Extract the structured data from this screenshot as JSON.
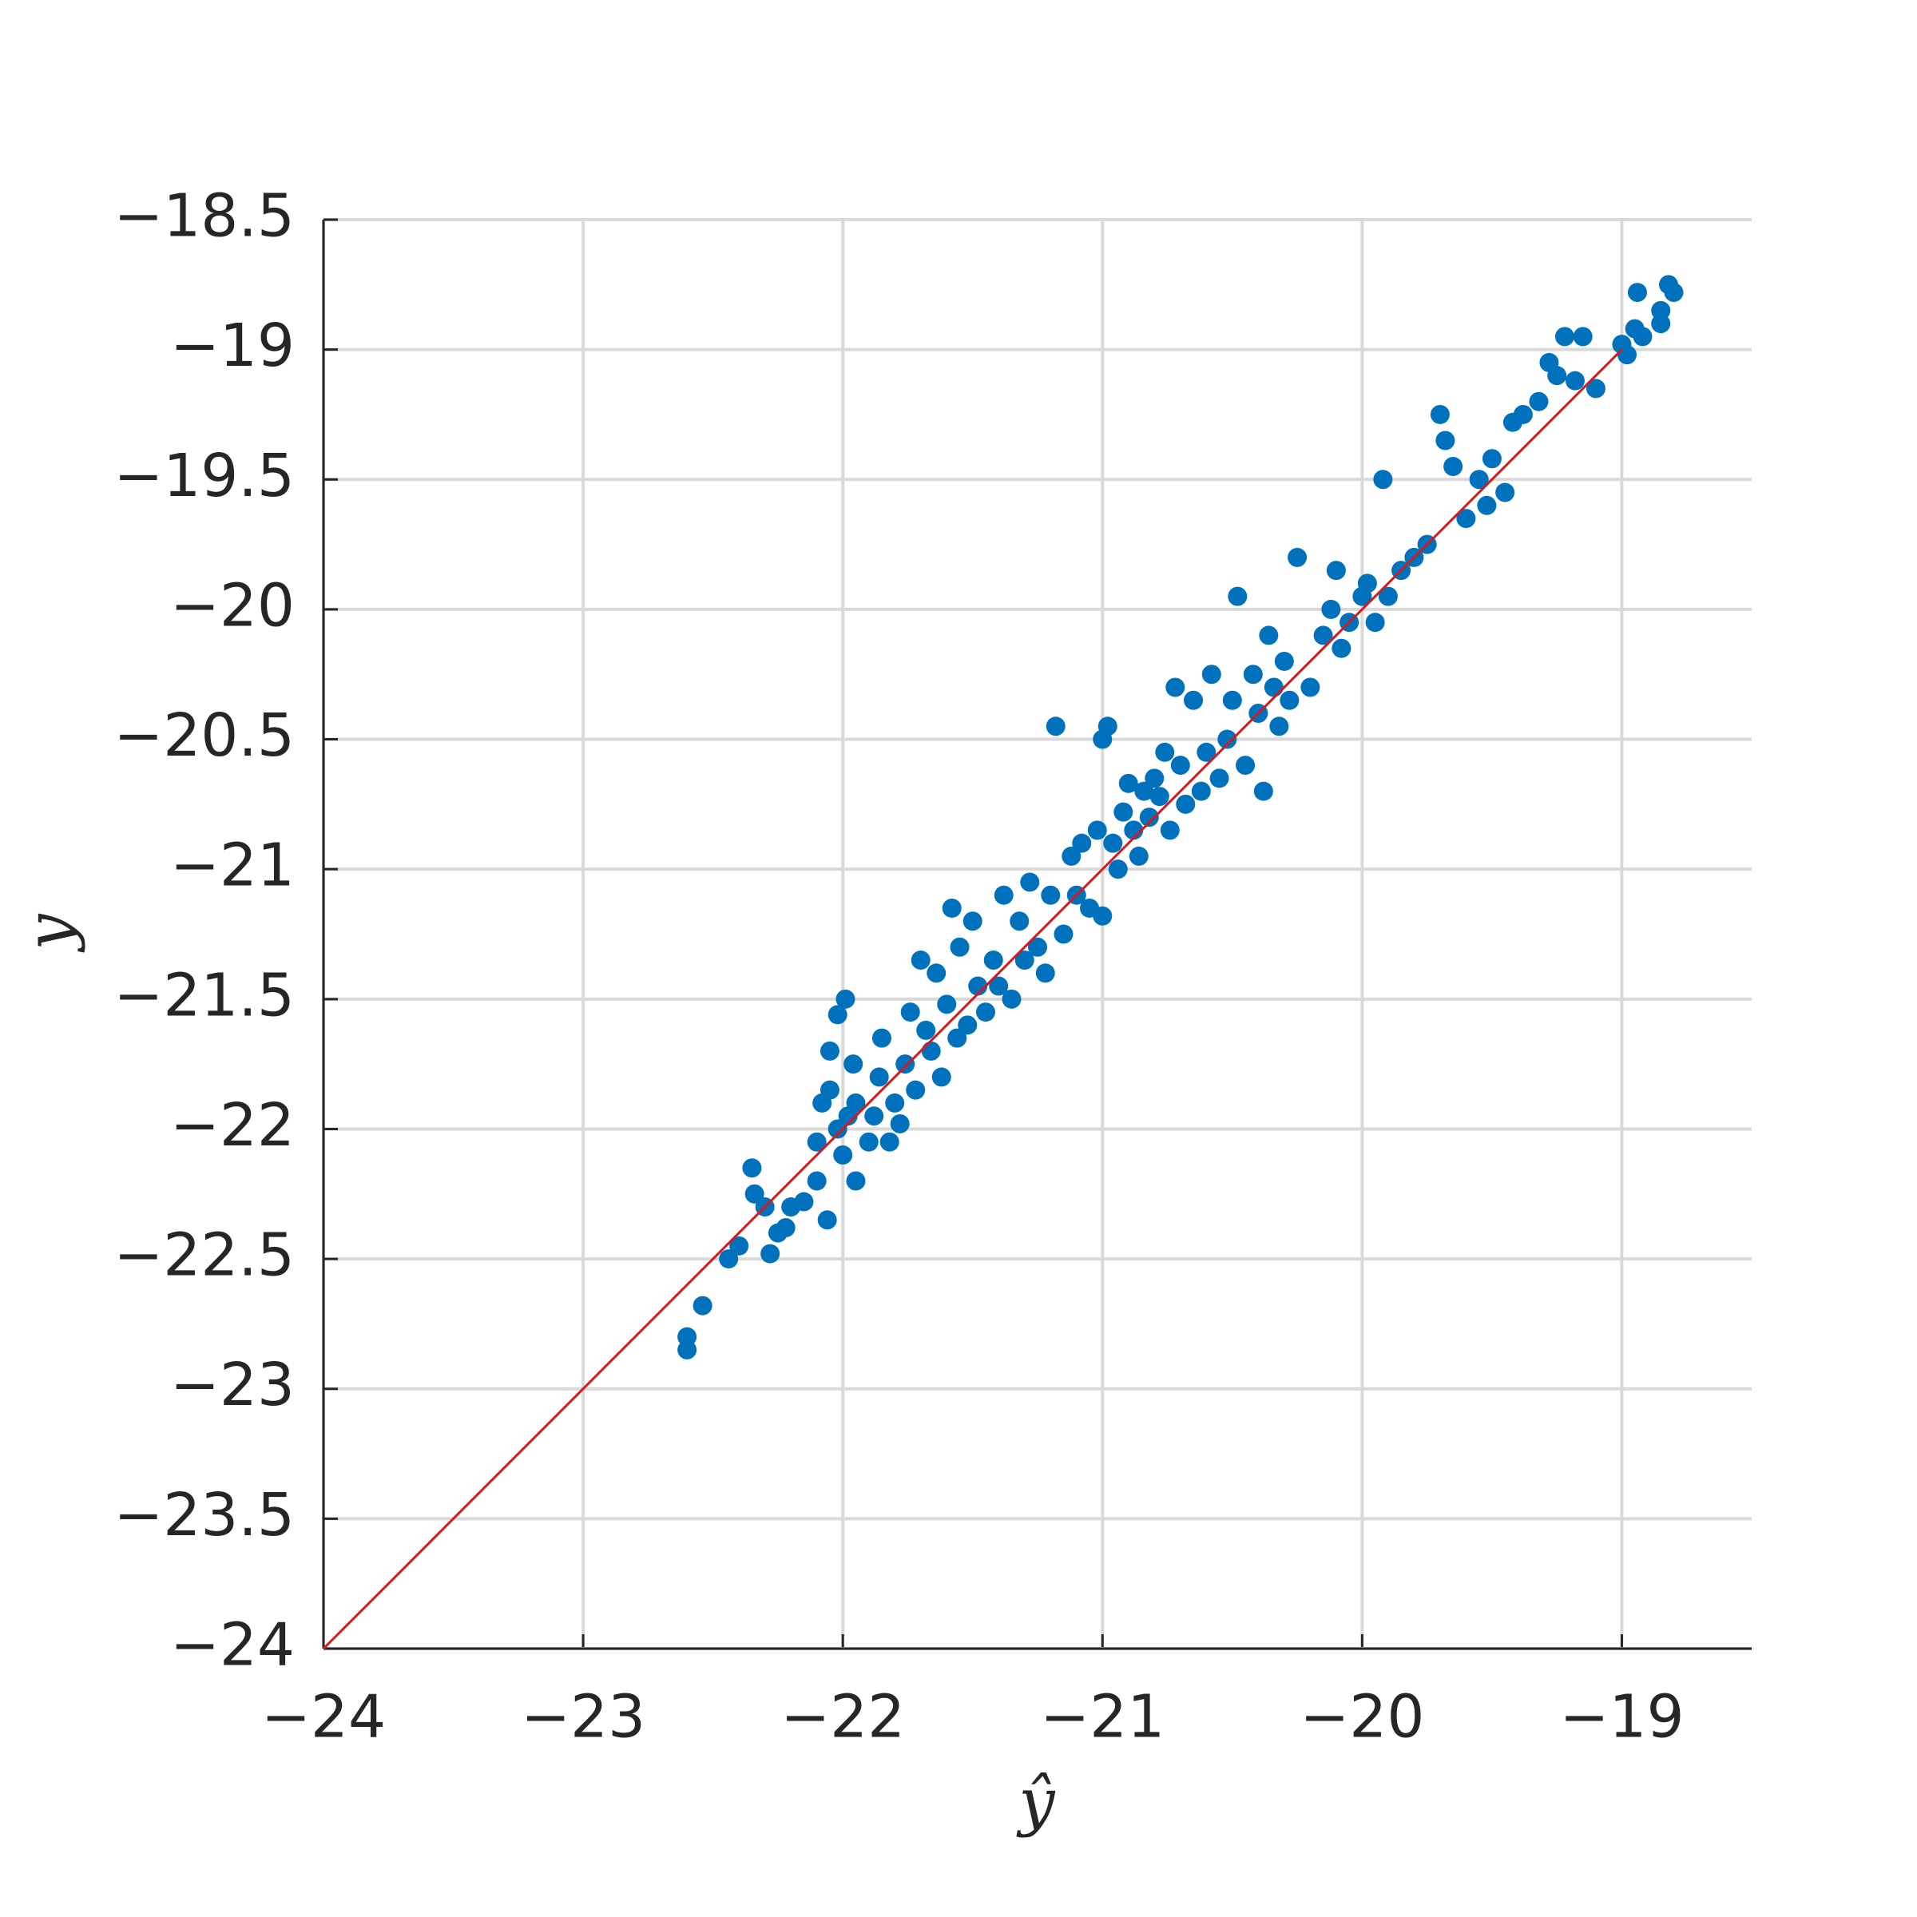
{
  "chart_data": {
    "type": "scatter",
    "xlabel": "ŷ",
    "ylabel": "y",
    "xlim": [
      -24,
      -18.5
    ],
    "ylim": [
      -24,
      -18.5
    ],
    "xticks": [
      {
        "value": -24,
        "label": "−24"
      },
      {
        "value": -23,
        "label": "−23"
      },
      {
        "value": -22,
        "label": "−22"
      },
      {
        "value": -21,
        "label": "−21"
      },
      {
        "value": -20,
        "label": "−20"
      },
      {
        "value": -19,
        "label": "−19"
      }
    ],
    "yticks": [
      {
        "value": -24,
        "label": "−24"
      },
      {
        "value": -23.5,
        "label": "−23.5"
      },
      {
        "value": -23,
        "label": "−23"
      },
      {
        "value": -22.5,
        "label": "−22.5"
      },
      {
        "value": -22,
        "label": "−22"
      },
      {
        "value": -21.5,
        "label": "−21.5"
      },
      {
        "value": -21,
        "label": "−21"
      },
      {
        "value": -20.5,
        "label": "−20.5"
      },
      {
        "value": -20,
        "label": "−20"
      },
      {
        "value": -19.5,
        "label": "−19.5"
      },
      {
        "value": -19,
        "label": "−19"
      },
      {
        "value": -18.5,
        "label": "−18.5"
      }
    ],
    "grid": true,
    "color": "#0072bd",
    "x": [
      -22.6,
      -22.6,
      -22.54,
      -22.44,
      -22.4,
      -22.35,
      -22.34,
      -22.3,
      -22.28,
      -22.25,
      -22.22,
      -22.2,
      -22.15,
      -22.1,
      -22.06,
      -22.1,
      -22.08,
      -22.05,
      -22.02,
      -22.0,
      -21.98,
      -21.95,
      -22.05,
      -22.02,
      -21.99,
      -21.96,
      -21.95,
      -21.9,
      -21.88,
      -21.86,
      -21.85,
      -21.82,
      -21.8,
      -21.78,
      -21.76,
      -21.74,
      -21.72,
      -21.7,
      -21.68,
      -21.66,
      -21.64,
      -21.62,
      -21.6,
      -21.58,
      -21.56,
      -21.55,
      -21.52,
      -21.5,
      -21.48,
      -21.45,
      -21.42,
      -21.4,
      -21.38,
      -21.35,
      -21.32,
      -21.3,
      -21.28,
      -21.25,
      -21.22,
      -21.2,
      -21.18,
      -21.15,
      -21.12,
      -21.1,
      -21.08,
      -21.05,
      -21.02,
      -21.0,
      -21.0,
      -20.98,
      -20.96,
      -20.94,
      -20.92,
      -20.9,
      -20.88,
      -20.86,
      -20.84,
      -20.82,
      -20.8,
      -20.78,
      -20.76,
      -20.74,
      -20.72,
      -20.7,
      -20.68,
      -20.65,
      -20.62,
      -20.6,
      -20.58,
      -20.55,
      -20.52,
      -20.5,
      -20.48,
      -20.45,
      -20.42,
      -20.4,
      -20.38,
      -20.36,
      -20.34,
      -20.32,
      -20.3,
      -20.28,
      -20.25,
      -20.2,
      -20.15,
      -20.12,
      -20.1,
      -20.08,
      -20.05,
      -20.0,
      -19.98,
      -19.95,
      -19.92,
      -19.9,
      -19.85,
      -19.8,
      -19.75,
      -19.7,
      -19.68,
      -19.65,
      -19.6,
      -19.55,
      -19.52,
      -19.5,
      -19.45,
      -19.42,
      -19.38,
      -19.32,
      -19.28,
      -19.25,
      -19.22,
      -19.18,
      -19.15,
      -19.1,
      -19.0,
      -18.98,
      -18.95,
      -18.94,
      -18.92,
      -18.85,
      -18.82,
      -18.8,
      -18.85
    ],
    "y": [
      -22.85,
      -22.8,
      -22.68,
      -22.5,
      -22.45,
      -22.15,
      -22.25,
      -22.3,
      -22.48,
      -22.4,
      -22.38,
      -22.3,
      -22.28,
      -22.2,
      -22.35,
      -22.05,
      -21.9,
      -21.85,
      -22.0,
      -22.1,
      -21.95,
      -22.2,
      -21.7,
      -21.56,
      -21.5,
      -21.75,
      -21.9,
      -22.05,
      -21.95,
      -21.8,
      -21.65,
      -22.05,
      -21.9,
      -21.98,
      -21.75,
      -21.55,
      -21.85,
      -21.35,
      -21.62,
      -21.7,
      -21.4,
      -21.8,
      -21.52,
      -21.15,
      -21.65,
      -21.3,
      -21.6,
      -21.2,
      -21.45,
      -21.55,
      -21.35,
      -21.45,
      -21.1,
      -21.5,
      -21.2,
      -21.35,
      -21.05,
      -21.3,
      -21.4,
      -21.1,
      -20.45,
      -21.25,
      -20.95,
      -21.1,
      -20.9,
      -21.15,
      -20.85,
      -20.5,
      -21.18,
      -20.45,
      -20.9,
      -21.0,
      -20.78,
      -20.67,
      -20.85,
      -20.95,
      -20.7,
      -20.8,
      -20.65,
      -20.72,
      -20.55,
      -20.85,
      -20.3,
      -20.6,
      -20.75,
      -20.35,
      -20.7,
      -20.55,
      -20.25,
      -20.65,
      -20.5,
      -20.35,
      -19.95,
      -20.6,
      -20.25,
      -20.4,
      -20.7,
      -20.1,
      -20.3,
      -20.45,
      -20.2,
      -20.35,
      -19.8,
      -20.3,
      -20.1,
      -20.0,
      -19.85,
      -20.15,
      -20.05,
      -19.95,
      -19.9,
      -20.05,
      -19.5,
      -19.95,
      -19.85,
      -19.8,
      -19.75,
      -19.25,
      -19.35,
      -19.45,
      -19.65,
      -19.5,
      -19.6,
      -19.42,
      -19.55,
      -19.28,
      -19.25,
      -19.2,
      -19.05,
      -19.1,
      -18.95,
      -19.12,
      -18.95,
      -19.15,
      -18.98,
      -19.02,
      -18.92,
      -18.78,
      -18.95,
      -18.85,
      -18.75,
      -18.78,
      -18.9
    ],
    "reference_line": {
      "x": [
        -24,
        -19
      ],
      "y": [
        -24,
        -19
      ],
      "color": "#d7191c"
    }
  }
}
